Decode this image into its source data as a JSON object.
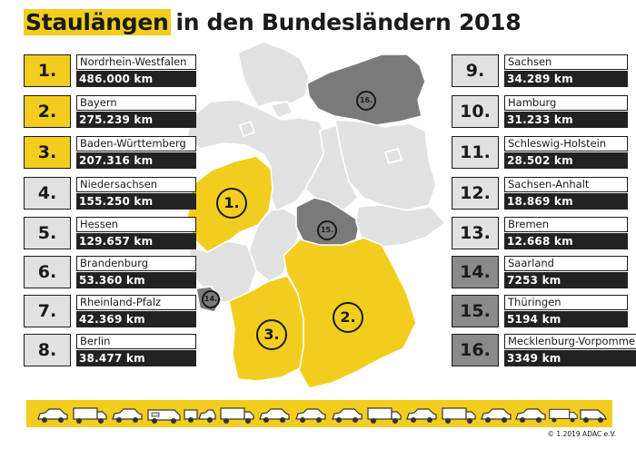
{
  "title": {
    "highlight": "Staulängen",
    "rest": "in den Bundesländern 2018"
  },
  "colors": {
    "yellow": "#f2cd1e",
    "dark_gray": "#7a7a7a",
    "light_gray": "#e1e1e1",
    "black": "#1a1a1a"
  },
  "rankings": [
    {
      "rank": "1.",
      "state": "Nordrhein-Westfalen",
      "value": "486.000 km",
      "shade": "yellow"
    },
    {
      "rank": "2.",
      "state": "Bayern",
      "value": "275.239 km",
      "shade": "yellow"
    },
    {
      "rank": "3.",
      "state": "Baden-Württemberg",
      "value": "207.316 km",
      "shade": "yellow"
    },
    {
      "rank": "4.",
      "state": "Niedersachsen",
      "value": "155.250 km",
      "shade": "light"
    },
    {
      "rank": "5.",
      "state": "Hessen",
      "value": "129.657 km",
      "shade": "light"
    },
    {
      "rank": "6.",
      "state": "Brandenburg",
      "value": "53.360 km",
      "shade": "light"
    },
    {
      "rank": "7.",
      "state": "Rheinland-Pfalz",
      "value": "42.369 km",
      "shade": "light"
    },
    {
      "rank": "8.",
      "state": "Berlin",
      "value": "38.477 km",
      "shade": "light"
    },
    {
      "rank": "9.",
      "state": "Sachsen",
      "value": "34.289 km",
      "shade": "light"
    },
    {
      "rank": "10.",
      "state": "Hamburg",
      "value": "31.233 km",
      "shade": "light"
    },
    {
      "rank": "11.",
      "state": "Schleswig-Holstein",
      "value": "28.502 km",
      "shade": "light"
    },
    {
      "rank": "12.",
      "state": "Sachsen-Anhalt",
      "value": "18.869 km",
      "shade": "light"
    },
    {
      "rank": "13.",
      "state": "Bremen",
      "value": "12.668 km",
      "shade": "light"
    },
    {
      "rank": "14.",
      "state": "Saarland",
      "value": "7253 km",
      "shade": "gray"
    },
    {
      "rank": "15.",
      "state": "Thüringen",
      "value": "5194 km",
      "shade": "gray"
    },
    {
      "rank": "16.",
      "state": "Mecklenburg-Vorpommern",
      "value": "3349 km",
      "shade": "gray"
    }
  ],
  "map_markers": {
    "nrw": "1.",
    "bayern": "2.",
    "bw": "3.",
    "saarland": "14.",
    "thueringen": "15.",
    "mv": "16."
  },
  "footer": {
    "copyright": "© 1.2019 ADAC e.V."
  },
  "vehicles": [
    "car-icon",
    "truck-icon",
    "car-icon",
    "camper-icon",
    "trailer-icon",
    "truck-icon",
    "car-icon",
    "car-icon",
    "car-icon",
    "truck-icon",
    "car-icon",
    "truck-icon",
    "car-icon",
    "car-icon",
    "truck-icon",
    "van-icon"
  ]
}
